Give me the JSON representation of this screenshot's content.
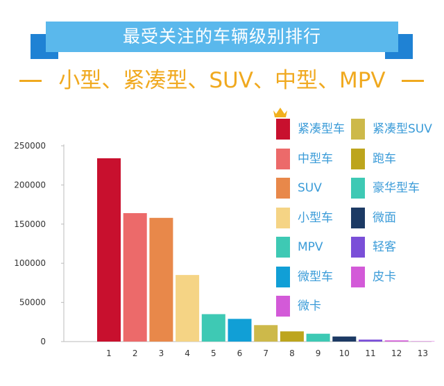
{
  "header": {
    "title": "最受关注的车辆级别排行",
    "subtitle": "小型、紧凑型、SUV、中型、MPV"
  },
  "chart_data": {
    "type": "bar",
    "categories": [
      "1",
      "2",
      "3",
      "4",
      "5",
      "6",
      "7",
      "8",
      "9",
      "10",
      "11",
      "12",
      "13"
    ],
    "values": [
      234000,
      164000,
      158000,
      85000,
      35000,
      29000,
      21000,
      13000,
      10000,
      6500,
      2500,
      1500,
      400
    ],
    "colors": [
      "#c8102e",
      "#ec6a6a",
      "#e8884a",
      "#f5d485",
      "#3ec9b4",
      "#119fd6",
      "#cdb94a",
      "#bda51d",
      "#3dc9b4",
      "#1c3a64",
      "#7a4fd8",
      "#d35ad8",
      "#d35ad8"
    ],
    "ylim": [
      0,
      250000
    ],
    "yticks": [
      "250000",
      "200000",
      "150000",
      "100000",
      "50000",
      "0"
    ],
    "legend": [
      {
        "label": "紧凑型车",
        "color": "#c8102e"
      },
      {
        "label": "紧凑型SUV",
        "color": "#cdb94a"
      },
      {
        "label": "中型车",
        "color": "#ec6a6a"
      },
      {
        "label": "跑车",
        "color": "#bda51d"
      },
      {
        "label": "SUV",
        "color": "#e8884a"
      },
      {
        "label": "豪华型车",
        "color": "#3ec9b4"
      },
      {
        "label": "小型车",
        "color": "#f5d485"
      },
      {
        "label": "微面",
        "color": "#1c3a64"
      },
      {
        "label": "MPV",
        "color": "#3ec9b4"
      },
      {
        "label": "轻客",
        "color": "#7a4fd8"
      },
      {
        "label": "微型车",
        "color": "#119fd6"
      },
      {
        "label": "皮卡",
        "color": "#d35ad8"
      },
      {
        "label": "微卡",
        "color": "#d35ad8"
      }
    ],
    "grid": false
  },
  "icons": {
    "crown": "crown-icon"
  }
}
